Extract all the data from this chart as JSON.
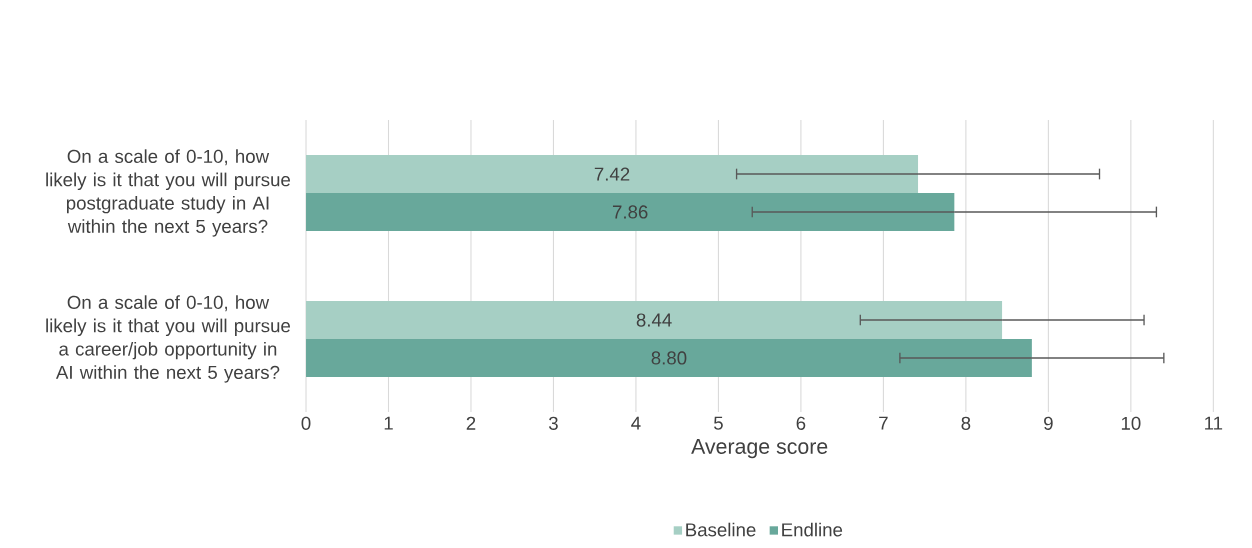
{
  "chart_data": {
    "type": "bar",
    "orientation": "horizontal",
    "categories": [
      "On a scale of 0-10, how likely is it that you will pursue postgraduate study in AI within the next 5 years?",
      "On a scale of 0-10, how likely is it that you will pursue a career/job opportunity in AI within the next 5 years?"
    ],
    "series": [
      {
        "name": "Baseline",
        "color": "#a6cfc4",
        "values": [
          7.42,
          8.44
        ],
        "errors": [
          2.2,
          1.72
        ],
        "value_labels": [
          "7.42",
          "8.44"
        ]
      },
      {
        "name": "Endline",
        "color": "#68a89b",
        "values": [
          7.86,
          8.8
        ],
        "errors": [
          2.45,
          1.6
        ],
        "value_labels": [
          "7.86",
          "8.80"
        ]
      }
    ],
    "xlabel": "Average score",
    "xlim": [
      0,
      11
    ],
    "xticks": [
      0,
      1,
      2,
      3,
      4,
      5,
      6,
      7,
      8,
      9,
      10,
      11
    ],
    "grid": "x",
    "legend": "bottom"
  }
}
